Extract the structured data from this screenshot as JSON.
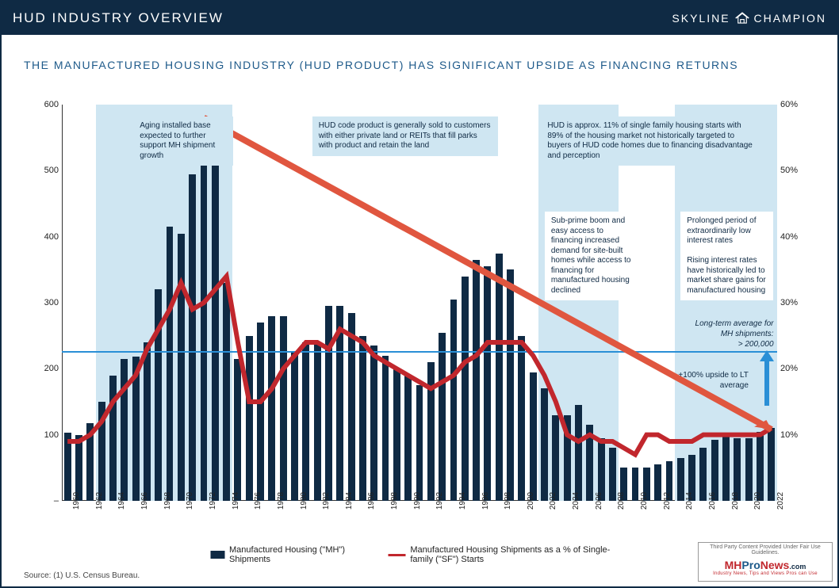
{
  "header": {
    "title": "HUD INDUSTRY OVERVIEW",
    "brand_left": "SKYLINE",
    "brand_right": "CHAMPION"
  },
  "subtitle": "THE MANUFACTURED HOUSING INDUSTRY (HUD PRODUCT) HAS SIGNIFICANT UPSIDE AS FINANCING RETURNS",
  "chart": {
    "type": "bar+line",
    "years_start": 1960,
    "years_end": 2022,
    "x_tick_step": 2,
    "y_left": {
      "min": 0,
      "max": 600,
      "step": 100
    },
    "y_right": {
      "min": 0,
      "max": 60,
      "step": 10,
      "suffix": "%"
    },
    "long_term_avg": 225,
    "bar_color": "#0f2a44",
    "line_color": "#c1272d",
    "lt_line_color": "#2a8fd6",
    "trend_arrow_color": "#e0563f",
    "band_color": "#cfe6f2",
    "callout_bg": "#cfe6f2",
    "bars": [
      103,
      100,
      118,
      150,
      190,
      215,
      218,
      240,
      320,
      415,
      405,
      495,
      575,
      580,
      330,
      215,
      250,
      270,
      280,
      280,
      225,
      240,
      240,
      295,
      295,
      285,
      250,
      235,
      220,
      200,
      190,
      175,
      210,
      255,
      305,
      340,
      365,
      355,
      375,
      350,
      250,
      195,
      170,
      130,
      130,
      145,
      115,
      95,
      80,
      50,
      50,
      50,
      55,
      60,
      65,
      70,
      80,
      93,
      97,
      95,
      95,
      105,
      110
    ],
    "line_pct": [
      9,
      9,
      10,
      12,
      15,
      17,
      19,
      23,
      26,
      29,
      33,
      29,
      30,
      32,
      34,
      24,
      15,
      15,
      17,
      20,
      22,
      24,
      24,
      23,
      26,
      25,
      24,
      22,
      21,
      20,
      19,
      18,
      17,
      18,
      19,
      21,
      22,
      24,
      24,
      24,
      24,
      22,
      19,
      15,
      10,
      9,
      10,
      9,
      9,
      8,
      7,
      10,
      10,
      9,
      9,
      9,
      10,
      10,
      10,
      10,
      10,
      10,
      11
    ],
    "shaded_bands": [
      {
        "from": 1963,
        "to": 1974
      },
      {
        "from": 2002,
        "to": 2008
      },
      {
        "from": 2014,
        "to": 2022
      }
    ],
    "trend_arrow": {
      "from_year": 1972,
      "from_val": 580,
      "to_year": 2022,
      "to_val": 108
    }
  },
  "callouts": {
    "c1": "Aging installed base expected to further support MH shipment growth",
    "c2": "HUD code product  is generally sold to customers with either private land or REITs that fill parks with product and retain the land",
    "c3": "HUD is approx. 11% of single family housing starts with 89% of the housing market not historically targeted to buyers of HUD code homes due to financing disadvantage and perception",
    "c4": "Sub-prime boom and easy access to financing increased demand for site-built homes while access to financing for manufactured housing declined",
    "c5": "Prolonged period of extraordinarily low interest rates\n\nRising interest rates have historically led to market share gains for manufactured housing",
    "lt_label": "Long-term average for MH shipments:\n> 200,000",
    "upside": "+100% upside to LT average"
  },
  "legend": {
    "bars": "Manufactured Housing (\"MH\") Shipments",
    "line": "Manufactured Housing Shipments as a % of Single-family (\"SF\") Starts"
  },
  "source": "Source:  (1) U.S. Census Bureau.",
  "badge": {
    "top": "Third Party Content Provided Under Fair Use Guidelines.",
    "mh_m": "MH",
    "mh_pro": "Pro",
    "mh_news": "News",
    "mh_com": ".com",
    "tag": "Industry News, Tips and Views Pros can Use"
  }
}
